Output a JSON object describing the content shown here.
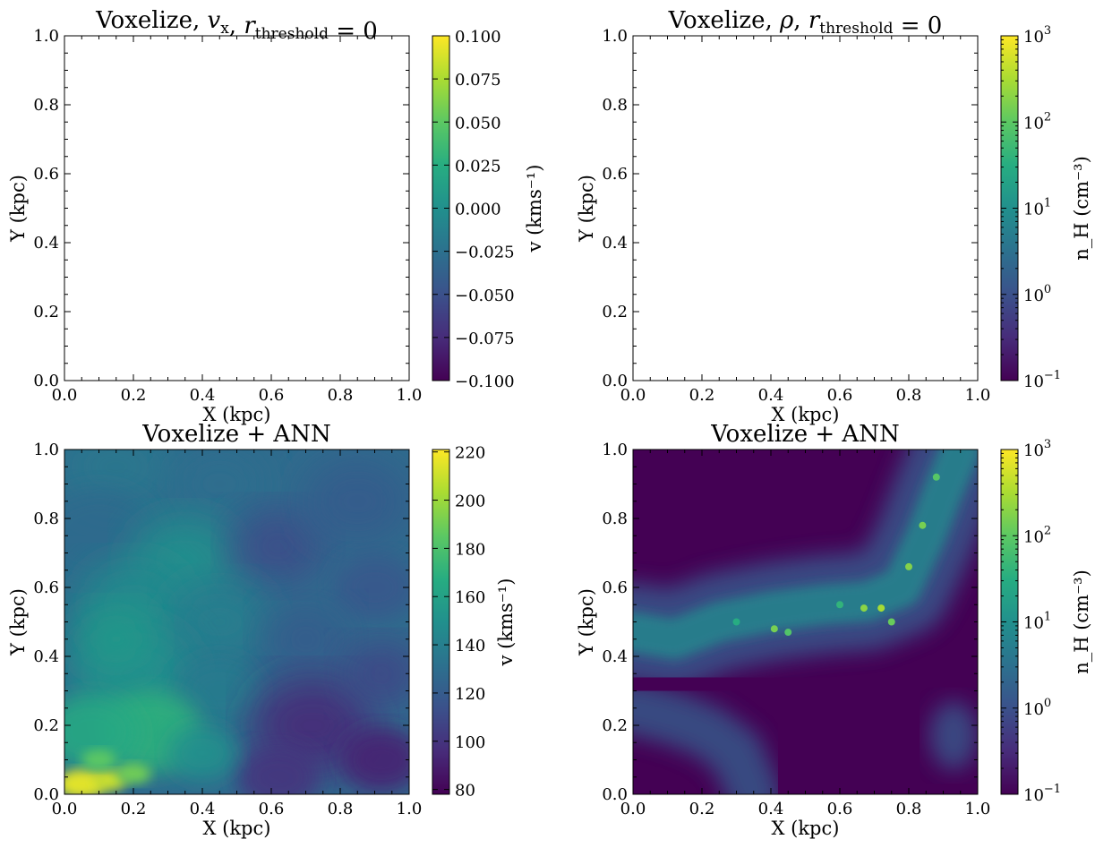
{
  "chart_data": [
    {
      "type": "heatmap",
      "panel": "top-left",
      "title_text": "Voxelize, ",
      "title_math": [
        {
          "t": "v",
          "sub": "x"
        },
        {
          "t": "r",
          "sub": "threshold",
          "suffix": " = 0"
        }
      ],
      "xlabel": "X (kpc)",
      "ylabel": "Y (kpc)",
      "xlim": [
        0,
        1
      ],
      "ylim": [
        0,
        1
      ],
      "xticks": [
        "0.0",
        "0.2",
        "0.4",
        "0.6",
        "0.8",
        "1.0"
      ],
      "yticks": [
        "0.0",
        "0.2",
        "0.4",
        "0.6",
        "0.8",
        "1.0"
      ],
      "field": "empty",
      "colorbar": {
        "label": "v (kms⁻¹)",
        "scale": "linear",
        "range": [
          -0.1,
          0.1
        ],
        "ticks": [
          "0.100",
          "0.075",
          "0.050",
          "0.025",
          "0.000",
          "−0.025",
          "−0.050",
          "−0.075",
          "−0.100"
        ],
        "colormap": "viridis"
      }
    },
    {
      "type": "heatmap",
      "panel": "top-right",
      "title_text": "Voxelize, ",
      "title_math": [
        {
          "t": "ρ",
          "sub": ""
        },
        {
          "t": "r",
          "sub": "threshold",
          "suffix": " = 0"
        }
      ],
      "xlabel": "X (kpc)",
      "ylabel": "Y (kpc)",
      "xlim": [
        0,
        1
      ],
      "ylim": [
        0,
        1
      ],
      "xticks": [
        "0.0",
        "0.2",
        "0.4",
        "0.6",
        "0.8",
        "1.0"
      ],
      "yticks": [
        "0.0",
        "0.2",
        "0.4",
        "0.6",
        "0.8",
        "1.0"
      ],
      "field": "empty",
      "colorbar": {
        "label": "n_H (cm⁻³)",
        "scale": "log",
        "range": [
          0.1,
          1000
        ],
        "ticks": [
          {
            "base": "10",
            "exp": "3"
          },
          {
            "base": "10",
            "exp": "2"
          },
          {
            "base": "10",
            "exp": "1"
          },
          {
            "base": "10",
            "exp": "0"
          },
          {
            "base": "10",
            "exp": "-1"
          }
        ],
        "colormap": "viridis"
      }
    },
    {
      "type": "heatmap",
      "panel": "bottom-left",
      "title": "Voxelize + ANN",
      "xlabel": "X (kpc)",
      "ylabel": "Y (kpc)",
      "xlim": [
        0,
        1
      ],
      "ylim": [
        0,
        1
      ],
      "xticks": [
        "0.0",
        "0.2",
        "0.4",
        "0.6",
        "0.8",
        "1.0"
      ],
      "yticks": [
        "0.0",
        "0.2",
        "0.4",
        "0.6",
        "0.8",
        "1.0"
      ],
      "field": "velocity",
      "colorbar": {
        "label": "v (kms⁻¹)",
        "scale": "linear",
        "range": [
          78,
          221
        ],
        "ticks": [
          "220",
          "200",
          "180",
          "160",
          "140",
          "120",
          "100",
          "80"
        ],
        "colormap": "viridis"
      }
    },
    {
      "type": "heatmap",
      "panel": "bottom-right",
      "title": "Voxelize + ANN",
      "xlabel": "X (kpc)",
      "ylabel": "Y (kpc)",
      "xlim": [
        0,
        1
      ],
      "ylim": [
        0,
        1
      ],
      "xticks": [
        "0.0",
        "0.2",
        "0.4",
        "0.6",
        "0.8",
        "1.0"
      ],
      "yticks": [
        "0.0",
        "0.2",
        "0.4",
        "0.6",
        "0.8",
        "1.0"
      ],
      "field": "density",
      "colorbar": {
        "label": "n_H (cm⁻³)",
        "scale": "log",
        "range": [
          0.1,
          1000
        ],
        "ticks": [
          {
            "base": "10",
            "exp": "3"
          },
          {
            "base": "10",
            "exp": "2"
          },
          {
            "base": "10",
            "exp": "1"
          },
          {
            "base": "10",
            "exp": "0"
          },
          {
            "base": "10",
            "exp": "-1"
          }
        ],
        "colormap": "viridis"
      }
    }
  ]
}
